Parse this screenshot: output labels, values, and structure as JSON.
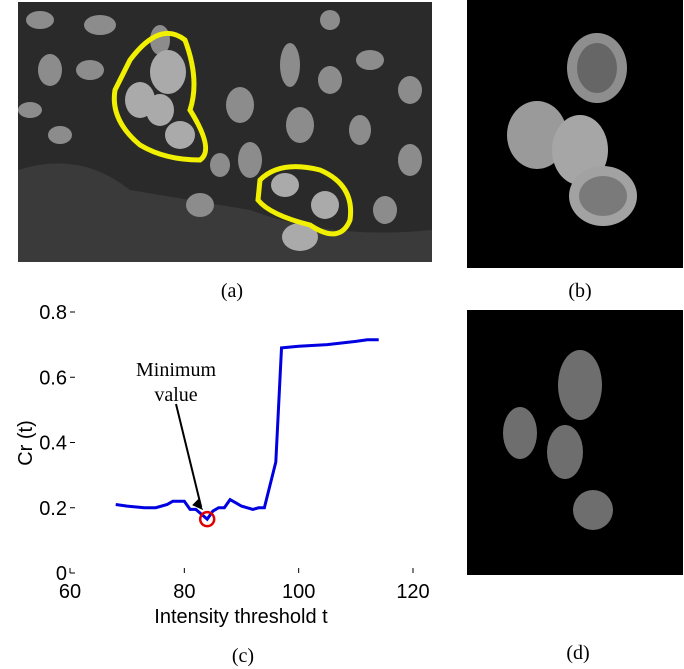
{
  "chart_data": {
    "type": "line",
    "xlabel": "Intensity threshold t",
    "ylabel": "Cr (t)",
    "x": [
      68,
      70,
      73,
      75,
      77,
      78,
      80,
      81,
      82,
      83,
      84,
      85,
      86,
      87,
      88,
      89,
      90,
      92,
      93,
      94,
      96,
      97,
      100,
      105,
      110,
      112,
      114
    ],
    "series": [
      {
        "color": "#0000e0",
        "values": [
          0.21,
          0.205,
          0.2,
          0.2,
          0.21,
          0.22,
          0.22,
          0.195,
          0.195,
          0.18,
          0.165,
          0.19,
          0.2,
          0.2,
          0.225,
          0.215,
          0.205,
          0.195,
          0.2,
          0.2,
          0.34,
          0.69,
          0.695,
          0.7,
          0.71,
          0.715,
          0.715
        ]
      }
    ],
    "marker": {
      "x": 84,
      "y": 0.165,
      "color": "#e00000"
    },
    "annotation": [
      "Minimum",
      "value"
    ],
    "xlim": [
      60,
      120
    ],
    "xticks": [
      60,
      80,
      100,
      120
    ],
    "ylim": [
      0,
      0.8
    ],
    "yticks": [
      0,
      0.2,
      0.4,
      0.6,
      0.8
    ]
  },
  "captions": [
    "(a)",
    "(b)",
    "(c)",
    "(d)"
  ]
}
